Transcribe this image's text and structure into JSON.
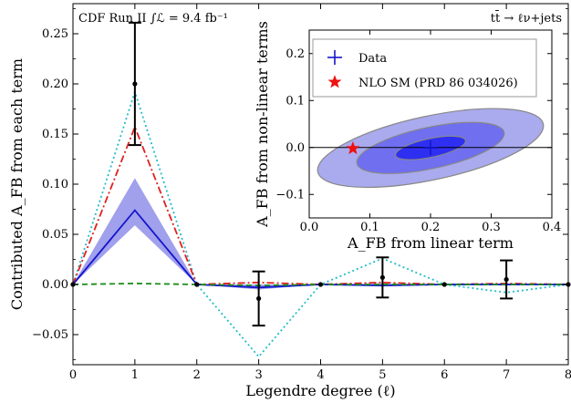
{
  "chart_data": [
    {
      "type": "line",
      "xlabel": "Legendre degree (ℓ)",
      "ylabel": "Contributed A_FB from each term",
      "xlim": [
        0,
        8
      ],
      "ylim": [
        -0.08,
        0.28
      ],
      "x_ticks": [
        "0",
        "1",
        "2",
        "3",
        "4",
        "5",
        "6",
        "7",
        "8"
      ],
      "y_ticks": [
        "−0.05",
        "0.00",
        "0.05",
        "0.10",
        "0.15",
        "0.20",
        "0.25"
      ],
      "annotations": {
        "top_left": "CDF Run II ∫ℒ = 9.4 fb⁻¹",
        "top_right": "tt̄ → ℓν+jets"
      },
      "series": [
        {
          "role": "data-points",
          "style": "black-points-with-error-bars",
          "color": "#000000",
          "x": [
            0,
            1,
            2,
            3,
            4,
            5,
            6,
            7,
            8
          ],
          "values": [
            0.0,
            0.2,
            0.0,
            -0.014,
            0.0,
            0.007,
            0.0,
            0.005,
            0.0
          ],
          "err": [
            0.0,
            0.061,
            0.0,
            0.027,
            0.0,
            0.02,
            0.0,
            0.019,
            0.0
          ]
        },
        {
          "role": "fit-dotted",
          "style": "dotted",
          "color": "#22bcc8",
          "x": [
            0,
            1,
            2,
            3,
            4,
            5,
            6,
            7,
            8
          ],
          "values": [
            0.0,
            0.192,
            0.0,
            -0.072,
            0.0,
            0.026,
            0.0,
            -0.008,
            0.0
          ]
        },
        {
          "role": "fit-dashdot",
          "style": "dash-dot",
          "color": "#e02020",
          "x": [
            0,
            1,
            2,
            3,
            4,
            5,
            6,
            7,
            8
          ],
          "values": [
            0.0,
            0.157,
            0.0,
            0.002,
            0.0,
            0.002,
            0.0,
            0.001,
            0.0
          ]
        },
        {
          "role": "fit-solid-with-band",
          "style": "solid",
          "color": "#1515cc",
          "band_color": "#a0a0ec",
          "x": [
            0,
            1,
            2,
            3,
            4,
            5,
            6,
            7,
            8
          ],
          "values": [
            0.0,
            0.074,
            0.0,
            -0.003,
            0.0,
            -0.001,
            0.0,
            0.0,
            0.0
          ],
          "band_low": [
            0.0,
            0.059,
            0.0,
            -0.005,
            0.0,
            -0.002,
            0.0,
            -0.001,
            0.0
          ],
          "band_high": [
            0.0,
            0.106,
            0.0,
            0.0,
            0.0,
            0.001,
            0.0,
            0.001,
            0.0
          ]
        },
        {
          "role": "fit-dashed",
          "style": "dashed",
          "color": "#1a8c1a",
          "x": [
            0,
            1,
            2,
            3,
            4,
            5,
            6,
            7,
            8
          ],
          "values": [
            0.0,
            0.001,
            0.0,
            -0.001,
            0.0,
            0.0,
            0.0,
            0.0,
            0.0
          ]
        }
      ]
    },
    {
      "type": "scatter",
      "xlabel": "A_FB from linear term",
      "ylabel": "A_FB from non-linear terms",
      "xlim": [
        0,
        0.4
      ],
      "ylim": [
        -0.15,
        0.25
      ],
      "x_ticks": [
        "0.0",
        "0.1",
        "0.2",
        "0.3",
        "0.4"
      ],
      "y_ticks": [
        "−0.1",
        "0.0",
        "0.1",
        "0.2"
      ],
      "legend_position": "top-left",
      "data_point": {
        "name": "Data",
        "x": 0.2,
        "y": -0.001,
        "color": "#1515cc"
      },
      "prediction": {
        "name": "NLO SM (PRD 86 034026)",
        "x": 0.072,
        "y": -0.002,
        "color": "#ee1111"
      },
      "contours": [
        {
          "level": 3,
          "cx": 0.2,
          "cy": -0.001,
          "rx": 0.19,
          "ry": 0.068,
          "angle_deg": -12,
          "color": "#aaaaee"
        },
        {
          "level": 2,
          "cx": 0.2,
          "cy": -0.001,
          "rx": 0.124,
          "ry": 0.044,
          "angle_deg": -12,
          "color": "#6f6ff0"
        },
        {
          "level": 1,
          "cx": 0.2,
          "cy": -0.001,
          "rx": 0.059,
          "ry": 0.02,
          "angle_deg": -12,
          "color": "#2f2ff2"
        }
      ]
    }
  ]
}
